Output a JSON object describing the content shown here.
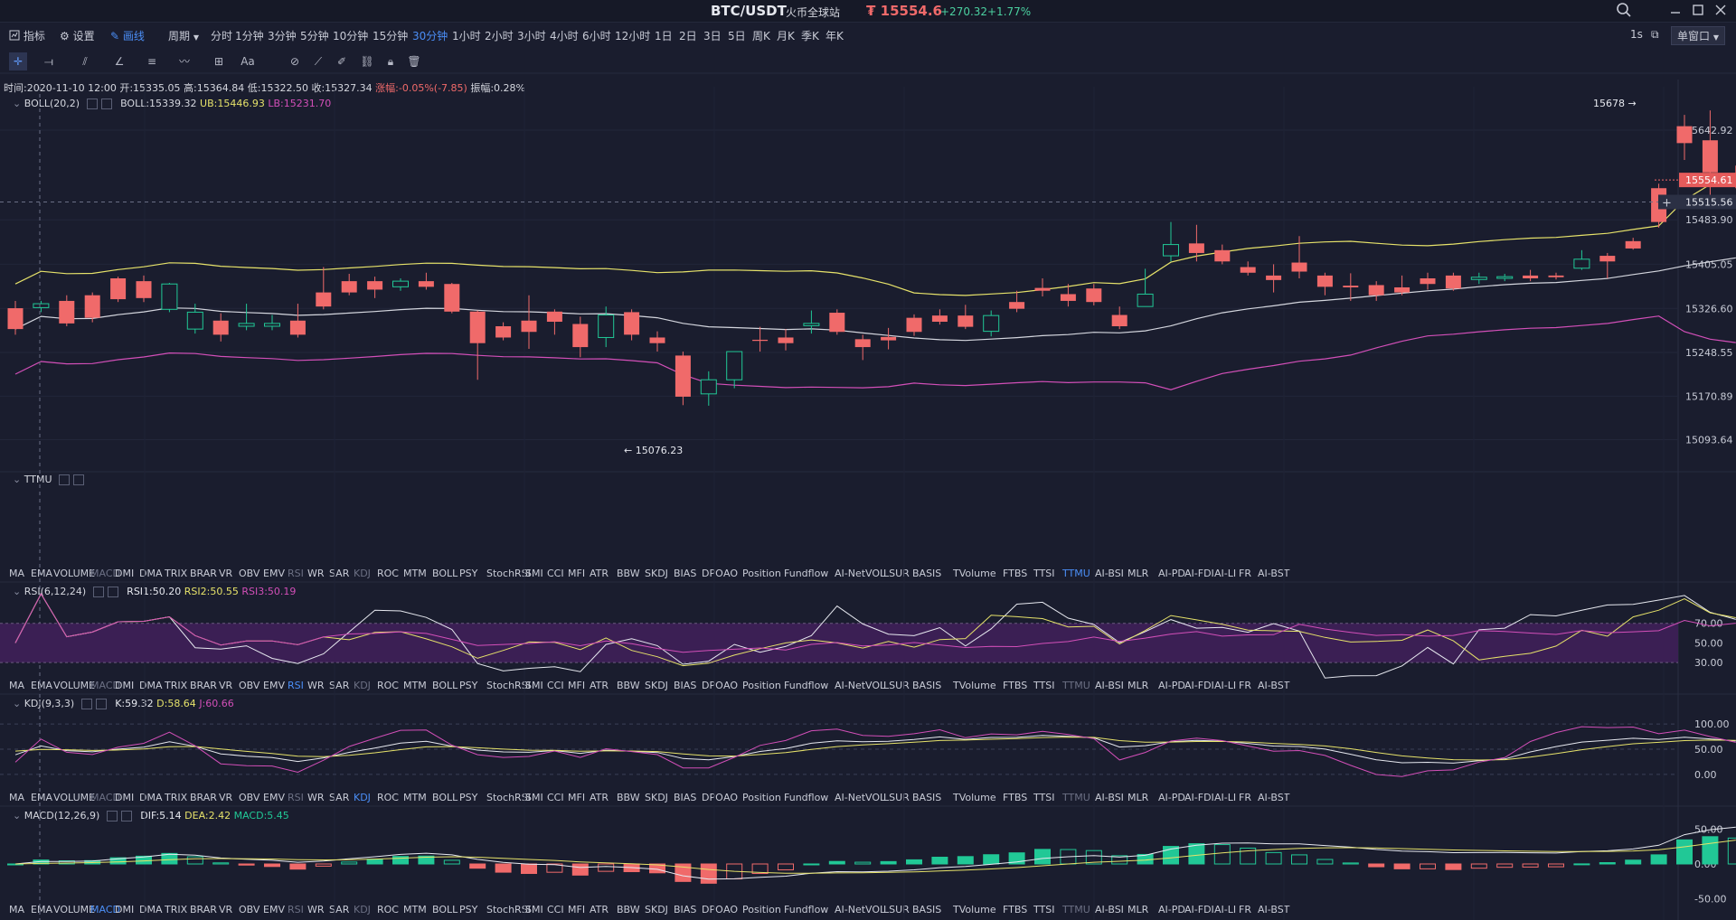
{
  "header": {
    "symbol": "BTC/USDT",
    "exchange": "火币全球站",
    "price": "₮ 15554.6",
    "change": "+270.32",
    "change_pct": "+1.77%"
  },
  "menu": {
    "indicator": "指标",
    "settings": "设置",
    "draw": "画线",
    "period": "周期",
    "periods": [
      "分时",
      "1分钟",
      "3分钟",
      "5分钟",
      "10分钟",
      "15分钟",
      "30分钟",
      "1小时",
      "2小时",
      "3小时",
      "4小时",
      "6小时",
      "12小时",
      "1日",
      "2日",
      "3日",
      "5日",
      "周K",
      "月K",
      "季K",
      "年K"
    ],
    "active_period": "30分钟",
    "refresh": "1s",
    "window": "单窗口"
  },
  "info": {
    "time": "时间:2020-11-10 12:00",
    "open": "开:15335.05",
    "high": "高:15364.84",
    "low": "低:15322.50",
    "close": "收:15327.34",
    "change": "涨幅:-0.05%(-7.85)",
    "amplitude": "振幅:0.28%"
  },
  "boll": {
    "name": "BOLL(20,2)",
    "mid": "BOLL:15339.32",
    "ub": "UB:15446.93",
    "lb": "LB:15231.70"
  },
  "ttmu": {
    "name": "TTMU"
  },
  "rsi": {
    "name": "RSI(6,12,24)",
    "r1": "RSI1:50.20",
    "r2": "RSI2:50.55",
    "r3": "RSI3:50.19"
  },
  "kdj": {
    "name": "KDJ(9,3,3)",
    "k": "K:59.32",
    "d": "D:58.64",
    "j": "J:60.66"
  },
  "macd": {
    "name": "MACD(12,26,9)",
    "dif": "DIF:5.14",
    "dea": "DEA:2.42",
    "macd": "MACD:5.45"
  },
  "indicator_tabs": [
    "MA",
    "EMA",
    "VOLUME",
    "MACD",
    "DMI",
    "DMA",
    "TRIX",
    "BRAR",
    "VR",
    "OBV",
    "EMV",
    "RSI",
    "WR",
    "SAR",
    "KDJ",
    "ROC",
    "MTM",
    "BOLL",
    "PSY",
    "StochRSI",
    "SMI",
    "CCI",
    "MFI",
    "ATR",
    "BBW",
    "SKDJ",
    "BIAS",
    "DPO",
    "AO",
    "Position",
    "Fundflow",
    "AI-NetVOL",
    "LSUR",
    "BASIS",
    "TVolume",
    "FTBS",
    "TTSI",
    "TTMU",
    "AI-BSI",
    "MLR",
    "AI-PD",
    "AI-FDI",
    "AI-LI",
    "FR",
    "AI-BST"
  ],
  "price_axis": [
    "15642.92",
    "15483.90",
    "15405.05",
    "15326.60",
    "15248.55",
    "15170.89",
    "15093.64"
  ],
  "price_tag": "15554.61",
  "crosshair_price": "15515.56",
  "high_annotation": "15678",
  "low_annotation": "15076.23",
  "rsi_axis": [
    "70.00",
    "50.00",
    "30.00"
  ],
  "kdj_axis": [
    "100.00",
    "50.00",
    "0.00"
  ],
  "macd_axis": [
    "50.00",
    "0.00",
    "-50.00"
  ],
  "colors": {
    "up": "#21c896",
    "down": "#f06a6a",
    "bg": "#1a1d2e",
    "accent": "#4b8ef6"
  },
  "chart_data": {
    "type": "candlestick",
    "interval": "30分钟",
    "candles": [
      [
        15327,
        15290,
        15340,
        15280
      ],
      [
        15328,
        15335,
        15340,
        15320
      ],
      [
        15340,
        15300,
        15350,
        15295
      ],
      [
        15350,
        15310,
        15355,
        15302
      ],
      [
        15380,
        15343,
        15383,
        15338
      ],
      [
        15375,
        15345,
        15385,
        15338
      ],
      [
        15325,
        15370,
        15372,
        15320
      ],
      [
        15290,
        15320,
        15335,
        15282
      ],
      [
        15305,
        15280,
        15318,
        15268
      ],
      [
        15295,
        15300,
        15335,
        15288
      ],
      [
        15295,
        15300,
        15315,
        15288
      ],
      [
        15305,
        15280,
        15335,
        15275
      ],
      [
        15355,
        15330,
        15400,
        15325
      ],
      [
        15375,
        15355,
        15388,
        15350
      ],
      [
        15375,
        15360,
        15383,
        15345
      ],
      [
        15365,
        15375,
        15380,
        15358
      ],
      [
        15375,
        15365,
        15390,
        15360
      ],
      [
        15370,
        15321,
        15372,
        15318
      ],
      [
        15321,
        15265,
        15323,
        15200
      ],
      [
        15295,
        15275,
        15302,
        15270
      ],
      [
        15305,
        15285,
        15350,
        15255
      ],
      [
        15321,
        15303,
        15325,
        15280
      ],
      [
        15299,
        15258,
        15312,
        15240
      ],
      [
        15275,
        15315,
        15330,
        15258
      ],
      [
        15320,
        15280,
        15325,
        15270
      ],
      [
        15275,
        15265,
        15286,
        15250
      ],
      [
        15243,
        15170,
        15250,
        15155
      ],
      [
        15175,
        15200,
        15215,
        15154
      ],
      [
        15200,
        15250,
        15250,
        15185
      ],
      [
        15271,
        15269,
        15294,
        15250
      ],
      [
        15275,
        15265,
        15290,
        15252
      ],
      [
        15296,
        15300,
        15323,
        15282
      ],
      [
        15319,
        15285,
        15325,
        15280
      ],
      [
        15272,
        15258,
        15280,
        15235
      ],
      [
        15276,
        15270,
        15292,
        15254
      ],
      [
        15310,
        15285,
        15316,
        15278
      ],
      [
        15314,
        15303,
        15325,
        15298
      ],
      [
        15314,
        15294,
        15333,
        15290
      ],
      [
        15286,
        15314,
        15323,
        15277
      ],
      [
        15338,
        15326,
        15358,
        15320
      ],
      [
        15363,
        15358,
        15380,
        15348
      ],
      [
        15352,
        15340,
        15370,
        15330
      ],
      [
        15362,
        15338,
        15370,
        15332
      ],
      [
        15315,
        15295,
        15330,
        15290
      ],
      [
        15330,
        15352,
        15397,
        15336
      ],
      [
        15420,
        15440,
        15480,
        15410
      ],
      [
        15442,
        15425,
        15475,
        15410
      ],
      [
        15430,
        15410,
        15440,
        15405
      ],
      [
        15400,
        15390,
        15410,
        15385
      ],
      [
        15385,
        15377,
        15405,
        15355
      ],
      [
        15408,
        15392,
        15455,
        15380
      ],
      [
        15385,
        15365,
        15390,
        15350
      ],
      [
        15367,
        15364,
        15389,
        15340
      ],
      [
        15368,
        15350,
        15375,
        15340
      ],
      [
        15364,
        15355,
        15385,
        15350
      ],
      [
        15380,
        15370,
        15390,
        15360
      ],
      [
        15385,
        15362,
        15390,
        15358
      ],
      [
        15378,
        15382,
        15390,
        15370
      ],
      [
        15380,
        15383,
        15388,
        15375
      ],
      [
        15385,
        15380,
        15395,
        15375
      ],
      [
        15385,
        15382,
        15390,
        15378
      ],
      [
        15398,
        15414,
        15430,
        15395
      ],
      [
        15420,
        15410,
        15425,
        15380
      ],
      [
        15446,
        15433,
        15452,
        15431
      ],
      [
        15540,
        15480,
        15548,
        15470
      ],
      [
        15650,
        15620,
        15670,
        15590
      ],
      [
        15625,
        15568,
        15678,
        15520
      ],
      [
        15566,
        15550,
        15580,
        15540
      ]
    ]
  }
}
